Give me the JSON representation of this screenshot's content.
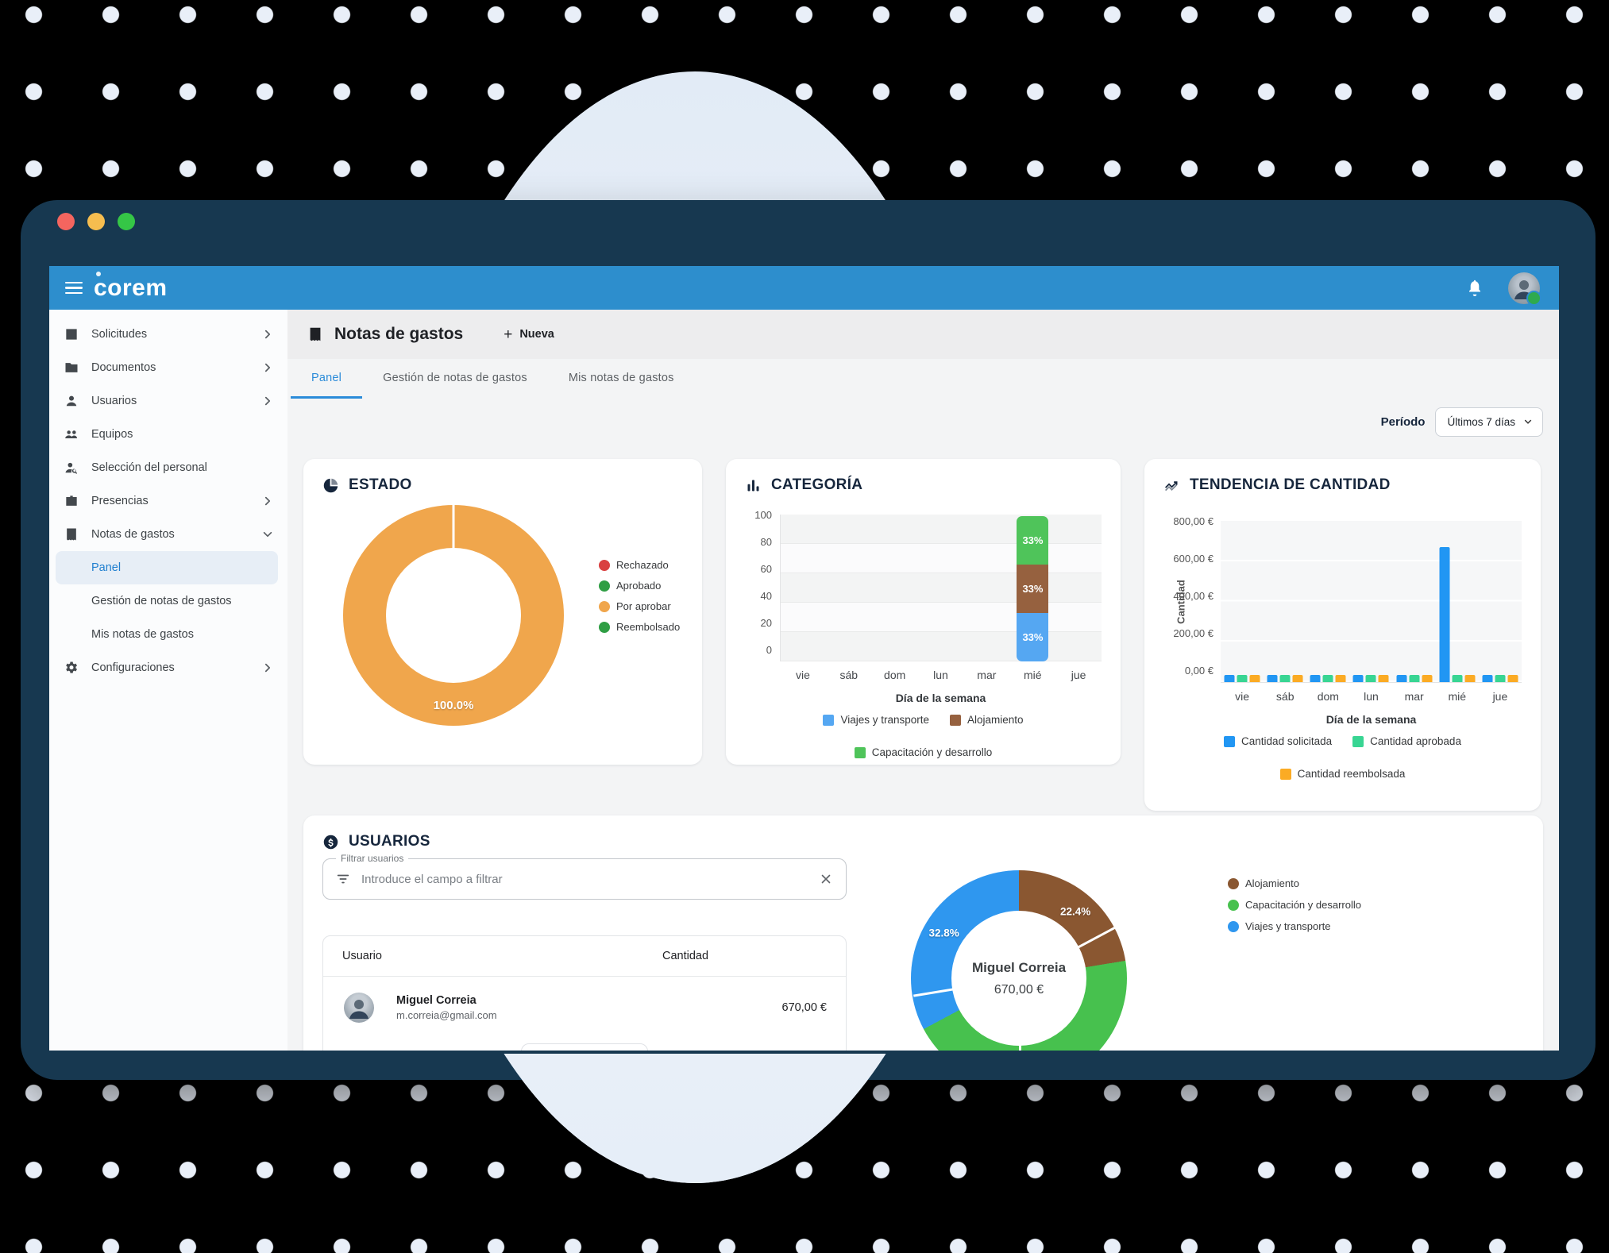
{
  "window": {
    "traffic_lights": [
      "#f4655f",
      "#f6bd4f",
      "#35c646"
    ]
  },
  "topbar": {
    "logo": "corem"
  },
  "sidebar": {
    "items": [
      {
        "icon": "list",
        "label": "Solicitudes",
        "chevron": "right"
      },
      {
        "icon": "folder",
        "label": "Documentos",
        "chevron": "right"
      },
      {
        "icon": "person",
        "label": "Usuarios",
        "chevron": "right"
      },
      {
        "icon": "people",
        "label": "Equipos",
        "chevron": null
      },
      {
        "icon": "person-search",
        "label": "Selección del personal",
        "chevron": null
      },
      {
        "icon": "badge",
        "label": "Presencias",
        "chevron": "right"
      },
      {
        "icon": "receipt",
        "label": "Notas de gastos",
        "chevron": "down"
      },
      {
        "label": "Panel",
        "sub": true,
        "active": true
      },
      {
        "label": "Gestión de notas de gastos",
        "sub": true
      },
      {
        "label": "Mis notas de gastos",
        "sub": true
      },
      {
        "icon": "gear",
        "label": "Configuraciones",
        "chevron": "right"
      }
    ]
  },
  "page": {
    "title": "Notas de gastos",
    "new_button": "Nueva",
    "tabs": [
      {
        "label": "Panel",
        "active": true
      },
      {
        "label": "Gestión de notas de gastos",
        "active": false
      },
      {
        "label": "Mis notas de gastos",
        "active": false
      }
    ]
  },
  "period": {
    "label": "Período",
    "value": "Últimos 7 días"
  },
  "charts": {
    "estado": {
      "type": "pie",
      "title": "ESTADO",
      "slices": [
        {
          "label": "Por aprobar",
          "pct": 100.0,
          "display": "100.0%",
          "color": "#f0a64c"
        }
      ],
      "legend": [
        {
          "label": "Rechazado",
          "color": "#d94040"
        },
        {
          "label": "Aprobado",
          "color": "#2f9e44"
        },
        {
          "label": "Por aprobar",
          "color": "#f0a64c"
        },
        {
          "label": "Reembolsado",
          "color": "#2f9e44"
        }
      ]
    },
    "categoria": {
      "type": "bar",
      "title": "CATEGORÍA",
      "xlabel": "Día de la semana",
      "categories": [
        "vie",
        "sáb",
        "dom",
        "lun",
        "mar",
        "mié",
        "jue"
      ],
      "yticks": [
        "100",
        "80",
        "60",
        "40",
        "20",
        "0"
      ],
      "ylim": [
        0,
        100
      ],
      "series": [
        {
          "name": "Viajes y transporte",
          "color": "#55a7f2",
          "values": [
            0,
            0,
            0,
            0,
            0,
            33,
            0
          ],
          "label": "33%"
        },
        {
          "name": "Alojamiento",
          "color": "#96613f",
          "values": [
            0,
            0,
            0,
            0,
            0,
            33,
            0
          ],
          "label": "33%"
        },
        {
          "name": "Capacitación y desarrollo",
          "color": "#4fc45a",
          "values": [
            0,
            0,
            0,
            0,
            0,
            33,
            0
          ],
          "label": "33%"
        }
      ]
    },
    "tendencia": {
      "type": "bar",
      "title": "TENDENCIA DE CANTIDAD",
      "ylabel": "Cantidad",
      "xlabel": "Día de la semana",
      "categories": [
        "vie",
        "sáb",
        "dom",
        "lun",
        "mar",
        "mié",
        "jue"
      ],
      "yticks": [
        "800,00 €",
        "600,00 €",
        "400,00 €",
        "200,00 €",
        "0,00 €"
      ],
      "ylim": [
        0,
        800
      ],
      "series": [
        {
          "name": "Cantidad solicitada",
          "color": "#2196f3",
          "values": [
            15,
            15,
            15,
            15,
            15,
            670,
            15
          ]
        },
        {
          "name": "Cantidad aprobada",
          "color": "#38d593",
          "values": [
            15,
            15,
            15,
            15,
            15,
            15,
            15
          ]
        },
        {
          "name": "Cantidad reembolsada",
          "color": "#fbab24",
          "values": [
            15,
            15,
            15,
            15,
            15,
            15,
            15
          ]
        }
      ]
    }
  },
  "usuarios": {
    "title": "USUARIOS",
    "filter": {
      "label": "Filtrar usuarios",
      "placeholder": "Introduce el campo a filtrar"
    },
    "table": {
      "headers": [
        "Usuario",
        "Cantidad"
      ],
      "rows": [
        {
          "name": "Miguel Correia",
          "email": "m.correia@gmail.com",
          "amount": "670,00 €"
        }
      ]
    },
    "donut": {
      "center_name": "Miguel Correia",
      "center_amount": "670,00 €",
      "slices": [
        {
          "label": "Alojamiento",
          "pct": 22.4,
          "display": "22.4%",
          "color": "#8a5731",
          "label_visible": true
        },
        {
          "label": "Capacitación y desarrollo",
          "pct": 44.8,
          "display": "44.8%",
          "color": "#47c14e",
          "label_visible": false
        },
        {
          "label": "Viajes y transporte",
          "pct": 32.8,
          "display": "32.8%",
          "color": "#2f97ef",
          "label_visible": true
        }
      ],
      "legend": [
        {
          "label": "Alojamiento",
          "color": "#8a5731"
        },
        {
          "label": "Capacitación y desarrollo",
          "color": "#47c14e"
        },
        {
          "label": "Viajes y transporte",
          "color": "#2f97ef"
        }
      ]
    }
  }
}
